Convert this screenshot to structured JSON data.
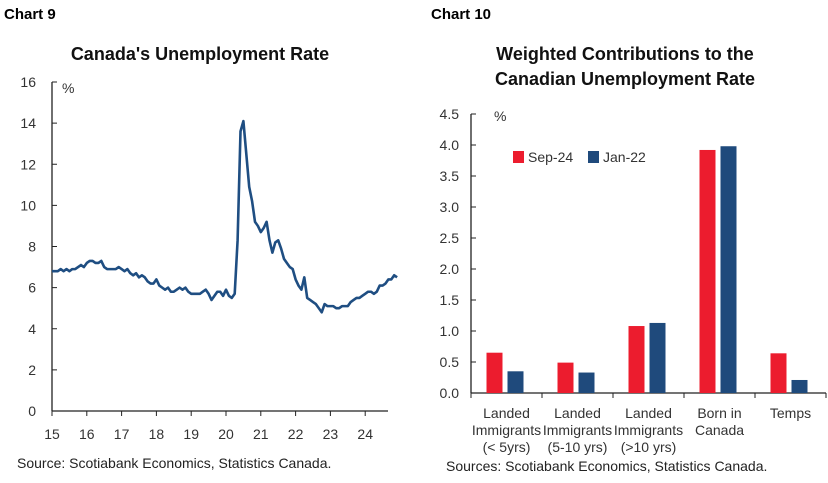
{
  "chart_data": [
    {
      "label": "Chart 9",
      "type": "line",
      "title": "Canada's Unemployment Rate",
      "ylabel": "%",
      "ylim": [
        0,
        16
      ],
      "yticks": [
        "0",
        "2",
        "4",
        "6",
        "8",
        "10",
        "12",
        "14",
        "16"
      ],
      "xticks": [
        "15",
        "16",
        "17",
        "18",
        "19",
        "20",
        "21",
        "22",
        "23",
        "24"
      ],
      "x_start": "2015-01",
      "frequency": "monthly",
      "color": "#1f4e82",
      "values": [
        6.8,
        6.8,
        6.8,
        6.9,
        6.8,
        6.9,
        6.8,
        6.9,
        6.9,
        7.0,
        7.1,
        7.0,
        7.2,
        7.3,
        7.3,
        7.2,
        7.2,
        7.3,
        7.0,
        6.9,
        6.9,
        6.9,
        6.9,
        7.0,
        6.9,
        6.8,
        6.9,
        6.7,
        6.6,
        6.7,
        6.5,
        6.6,
        6.5,
        6.3,
        6.2,
        6.2,
        6.4,
        6.1,
        6.0,
        5.9,
        6.0,
        5.8,
        5.8,
        5.9,
        6.0,
        5.9,
        6.0,
        5.8,
        5.7,
        5.7,
        5.7,
        5.7,
        5.8,
        5.9,
        5.7,
        5.4,
        5.6,
        5.8,
        5.8,
        5.6,
        5.9,
        5.6,
        5.5,
        5.7,
        8.3,
        13.6,
        14.1,
        12.5,
        10.9,
        10.2,
        9.2,
        9.0,
        8.7,
        8.9,
        9.2,
        8.3,
        7.7,
        8.2,
        8.3,
        7.9,
        7.4,
        7.2,
        7.0,
        6.9,
        6.4,
        6.1,
        5.9,
        6.5,
        5.5,
        5.4,
        5.3,
        5.2,
        5.0,
        4.8,
        5.2,
        5.1,
        5.1,
        5.1,
        5.0,
        5.0,
        5.1,
        5.1,
        5.1,
        5.3,
        5.4,
        5.5,
        5.5,
        5.6,
        5.7,
        5.8,
        5.8,
        5.7,
        5.8,
        6.1,
        6.1,
        6.2,
        6.4,
        6.4,
        6.6,
        6.5
      ],
      "source": "Source: Scotiabank Economics, Statistics Canada."
    },
    {
      "label": "Chart 10",
      "type": "bar",
      "title_lines": [
        "Weighted Contributions to the",
        "Canadian Unemployment Rate"
      ],
      "ylabel": "%",
      "ylim": [
        0,
        4.5
      ],
      "yticks": [
        "0.0",
        "0.5",
        "1.0",
        "1.5",
        "2.0",
        "2.5",
        "3.0",
        "3.5",
        "4.0",
        "4.5"
      ],
      "categories": [
        [
          "Landed",
          "Immigrants",
          "(< 5yrs)"
        ],
        [
          "Landed",
          "Immigrants",
          "(5-10 yrs)"
        ],
        [
          "Landed",
          "Immigrants",
          "(>10 yrs)"
        ],
        [
          "Born in",
          "Canada"
        ],
        [
          "Temps"
        ]
      ],
      "legend_position": "top-left",
      "series": [
        {
          "name": "Sep-24",
          "color": "#ec1c2e",
          "values": [
            0.65,
            0.49,
            1.08,
            3.92,
            0.64
          ]
        },
        {
          "name": "Jan-22",
          "color": "#1f4a7c",
          "values": [
            0.35,
            0.33,
            1.13,
            3.98,
            0.21
          ]
        }
      ],
      "source": "Sources: Scotiabank Economics, Statistics Canada."
    }
  ]
}
